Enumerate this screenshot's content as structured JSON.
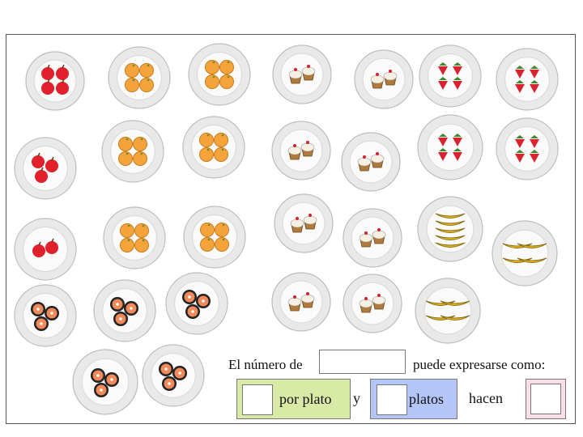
{
  "prompt": {
    "number_of_label": "El número de",
    "can_be_expressed_label": "puede expresarse como:",
    "per_plate_label": "por plato",
    "and_label": "y",
    "plates_label": "platos",
    "make_label": "hacen"
  },
  "colors": {
    "per_plate_group": "#d9eaa6",
    "plates_group": "#b3c6f7",
    "result_group": "#f9dde7",
    "apple": "#e0202a",
    "orange": "#f4a43a",
    "strawberry": "#d8232e",
    "banana": "#f2c21b",
    "cookie": "#f08a5a"
  },
  "plates": [
    {
      "fruit": "apple",
      "count": 4
    },
    {
      "fruit": "orange",
      "count": 4
    },
    {
      "fruit": "orange",
      "count": 4
    },
    {
      "fruit": "cupcake",
      "count": 2
    },
    {
      "fruit": "cupcake",
      "count": 2
    },
    {
      "fruit": "strawberry",
      "count": 4
    },
    {
      "fruit": "strawberry",
      "count": 4
    },
    {
      "fruit": "apple",
      "count": 3
    },
    {
      "fruit": "orange",
      "count": 4
    },
    {
      "fruit": "orange",
      "count": 4
    },
    {
      "fruit": "cupcake",
      "count": 2
    },
    {
      "fruit": "cupcake",
      "count": 2
    },
    {
      "fruit": "strawberry",
      "count": 4
    },
    {
      "fruit": "strawberry",
      "count": 4
    },
    {
      "fruit": "apple",
      "count": 2
    },
    {
      "fruit": "orange",
      "count": 4
    },
    {
      "fruit": "orange",
      "count": 4
    },
    {
      "fruit": "cupcake",
      "count": 2
    },
    {
      "fruit": "cupcake",
      "count": 2
    },
    {
      "fruit": "banana",
      "count": 5
    },
    {
      "fruit": "banana",
      "count": 4
    },
    {
      "fruit": "cookie",
      "count": 3
    },
    {
      "fruit": "cookie",
      "count": 3
    },
    {
      "fruit": "cookie",
      "count": 3
    },
    {
      "fruit": "cupcake",
      "count": 2
    },
    {
      "fruit": "cupcake",
      "count": 2
    },
    {
      "fruit": "banana",
      "count": 4
    },
    {
      "fruit": "cookie",
      "count": 3
    },
    {
      "fruit": "cookie",
      "count": 3
    }
  ]
}
